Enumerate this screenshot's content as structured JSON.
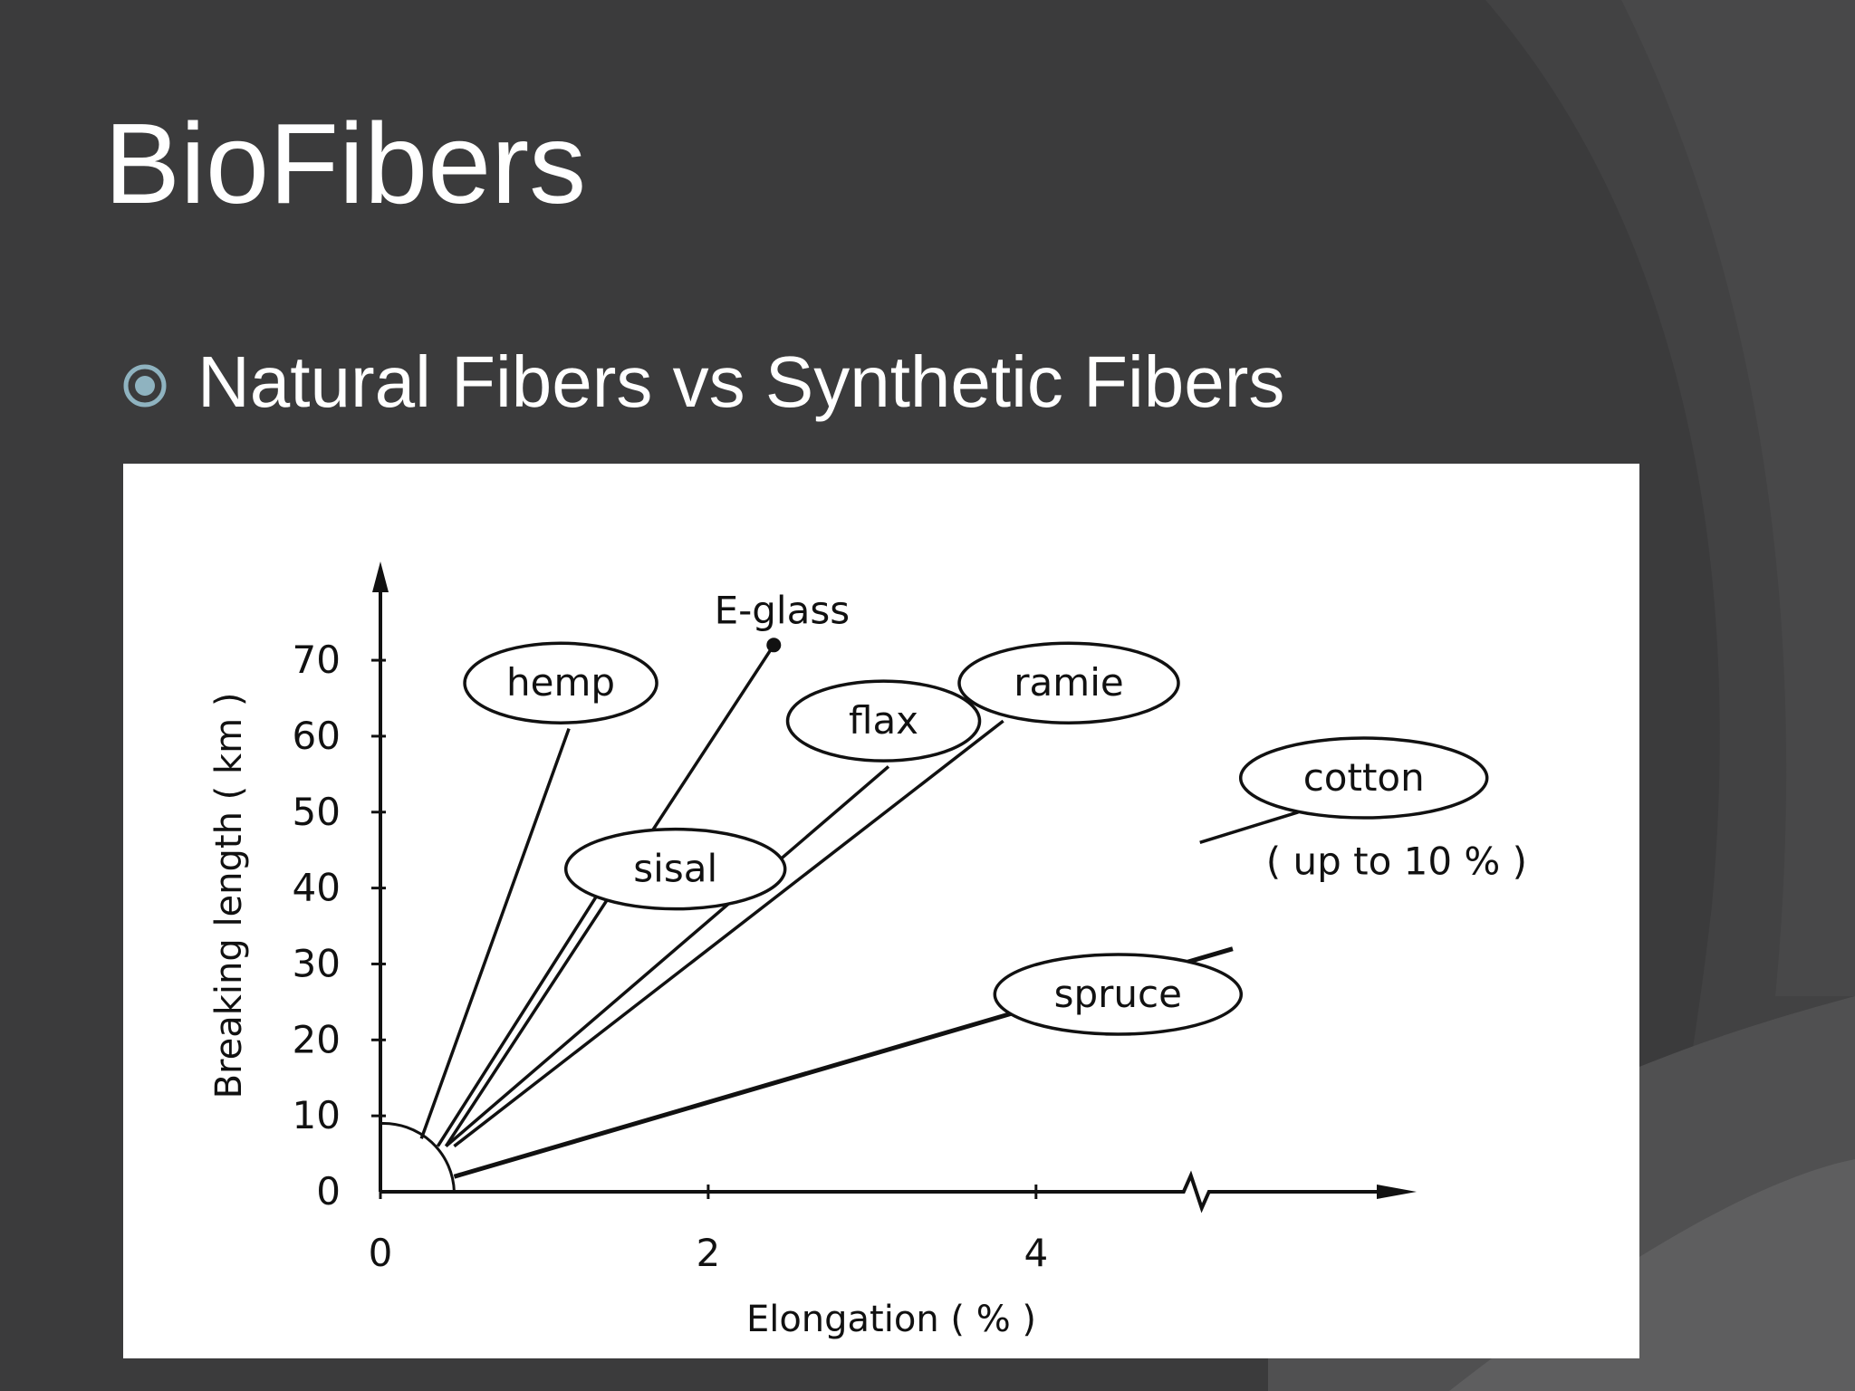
{
  "slide": {
    "title": "BioFibers",
    "bullet": "Natural Fibers vs Synthetic Fibers",
    "colors": {
      "background": "#3b3b3c",
      "bullet_accent": "#8fb3c0",
      "text": "#ffffff"
    }
  },
  "chart_data": {
    "type": "line",
    "title": "",
    "xlabel": "Elongation  ( % )",
    "ylabel": "Breaking length ( km )",
    "xlim": [
      0,
      6.3
    ],
    "ylim": [
      0,
      78
    ],
    "x_ticks": [
      0,
      2,
      4
    ],
    "y_ticks": [
      0,
      10,
      20,
      30,
      40,
      50,
      60,
      70
    ],
    "grid": false,
    "legend": "none",
    "x_axis_break_at": 5,
    "series": [
      {
        "name": "E-glass",
        "x": [
          0.4,
          2.4
        ],
        "y": [
          6,
          72
        ]
      },
      {
        "name": "hemp",
        "x": [
          0.25,
          1.15
        ],
        "y": [
          7,
          61
        ]
      },
      {
        "name": "sisal",
        "x": [
          0.35,
          1.35
        ],
        "y": [
          6,
          40
        ]
      },
      {
        "name": "flax",
        "x": [
          0.4,
          3.1
        ],
        "y": [
          6,
          56
        ]
      },
      {
        "name": "ramie",
        "x": [
          0.45,
          3.8
        ],
        "y": [
          6,
          62
        ]
      },
      {
        "name": "spruce",
        "x": [
          0.45,
          5.2
        ],
        "y": [
          2,
          32
        ]
      },
      {
        "name": "cotton",
        "x": [
          5,
          5.6
        ],
        "y": [
          46,
          50
        ]
      }
    ],
    "annotations": [
      {
        "text": "hemp",
        "x": 1.1,
        "y": 67,
        "shape": "ellipse"
      },
      {
        "text": "E-glass",
        "x": 2.45,
        "y": 76.5,
        "shape": "none"
      },
      {
        "text": "flax",
        "x": 3.07,
        "y": 62,
        "shape": "ellipse"
      },
      {
        "text": "ramie",
        "x": 4.2,
        "y": 67,
        "shape": "ellipse"
      },
      {
        "text": "sisal",
        "x": 1.8,
        "y": 42.5,
        "shape": "ellipse"
      },
      {
        "text": "cotton",
        "x": 6,
        "y": 54.5,
        "shape": "ellipse"
      },
      {
        "text": "( up to 10 % )",
        "x": 6.2,
        "y": 43.5,
        "shape": "none"
      },
      {
        "text": "spruce",
        "x": 4.5,
        "y": 26,
        "shape": "ellipse"
      }
    ]
  }
}
